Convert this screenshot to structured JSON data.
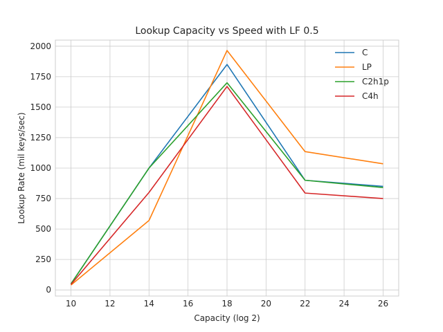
{
  "chart_data": {
    "type": "line",
    "title": "Lookup Capacity vs Speed with LF 0.5",
    "xlabel": "Capacity (log 2)",
    "ylabel": "Lookup Rate (mil keys/sec)",
    "x": [
      10,
      14,
      18,
      22,
      26
    ],
    "xticks": [
      10,
      12,
      14,
      16,
      18,
      20,
      22,
      24,
      26
    ],
    "yticks": [
      0,
      250,
      500,
      750,
      1000,
      1250,
      1500,
      1750,
      2000
    ],
    "xlim": [
      9.2,
      26.8
    ],
    "ylim": [
      -50,
      2050
    ],
    "grid": true,
    "legend_position": "top-right",
    "series": [
      {
        "name": "C",
        "color": "#1f77b4",
        "values": [
          50,
          1000,
          1850,
          900,
          850
        ]
      },
      {
        "name": "LP",
        "color": "#ff7f0e",
        "values": [
          40,
          570,
          1965,
          1135,
          1035
        ]
      },
      {
        "name": "C2h1p",
        "color": "#2ca02c",
        "values": [
          50,
          1000,
          1700,
          900,
          840
        ]
      },
      {
        "name": "C4h",
        "color": "#d62728",
        "values": [
          45,
          800,
          1670,
          795,
          750
        ]
      }
    ]
  }
}
